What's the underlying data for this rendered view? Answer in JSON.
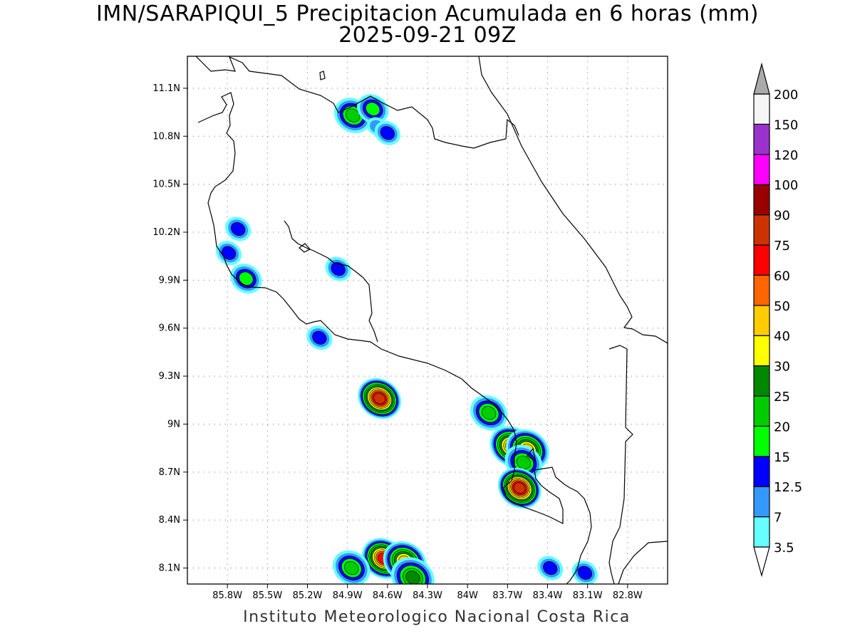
{
  "title": {
    "line1": "IMN/SARAPIQUI_5 Precipitacion Acumulada en 6 horas (mm)",
    "line2": "2025-09-21 09Z"
  },
  "footer": "Instituto Meteorologico Nacional Costa Rica",
  "map": {
    "lon_range": [
      -86.1,
      -82.5
    ],
    "lat_range": [
      8.0,
      11.3
    ],
    "lon_ticks": [
      {
        "v": -85.8,
        "label": "85.8W"
      },
      {
        "v": -85.5,
        "label": "85.5W"
      },
      {
        "v": -85.2,
        "label": "85.2W"
      },
      {
        "v": -84.9,
        "label": "84.9W"
      },
      {
        "v": -84.6,
        "label": "84.6W"
      },
      {
        "v": -84.3,
        "label": "84.3W"
      },
      {
        "v": -84.0,
        "label": "84W"
      },
      {
        "v": -83.7,
        "label": "83.7W"
      },
      {
        "v": -83.4,
        "label": "83.4W"
      },
      {
        "v": -83.1,
        "label": "83.1W"
      },
      {
        "v": -82.8,
        "label": "82.8W"
      }
    ],
    "lat_ticks": [
      {
        "v": 11.1,
        "label": "11.1N"
      },
      {
        "v": 10.8,
        "label": "10.8N"
      },
      {
        "v": 10.5,
        "label": "10.5N"
      },
      {
        "v": 10.2,
        "label": "10.2N"
      },
      {
        "v": 9.9,
        "label": "9.9N"
      },
      {
        "v": 9.6,
        "label": "9.6N"
      },
      {
        "v": 9.3,
        "label": "9.3N"
      },
      {
        "v": 9.0,
        "label": "9N"
      },
      {
        "v": 8.7,
        "label": "8.7N"
      },
      {
        "v": 8.4,
        "label": "8.4N"
      },
      {
        "v": 8.1,
        "label": "8.1N"
      }
    ],
    "grid": "dotted"
  },
  "colorbar": {
    "levels": [
      {
        "label": "3.5",
        "color": "#66ffff"
      },
      {
        "label": "7",
        "color": "#3399ff"
      },
      {
        "label": "12.5",
        "color": "#0000ff"
      },
      {
        "label": "15",
        "color": "#00ff00"
      },
      {
        "label": "20",
        "color": "#00cc00"
      },
      {
        "label": "25",
        "color": "#008800"
      },
      {
        "label": "30",
        "color": "#ffff00"
      },
      {
        "label": "40",
        "color": "#ffcc00"
      },
      {
        "label": "50",
        "color": "#ff6600"
      },
      {
        "label": "60",
        "color": "#ff0000"
      },
      {
        "label": "75",
        "color": "#cc3300"
      },
      {
        "label": "90",
        "color": "#990000"
      },
      {
        "label": "100",
        "color": "#ff00ff"
      },
      {
        "label": "120",
        "color": "#9933cc"
      },
      {
        "label": "150",
        "color": "#f5f5f5"
      },
      {
        "label": "200",
        "color": "#aaaaaa"
      }
    ],
    "under_color": "#ffffff",
    "over_color": "#aaaaaa"
  },
  "precipitation_cells": [
    {
      "lon": -84.86,
      "lat": 10.93,
      "max_level": 4
    },
    {
      "lon": -84.71,
      "lat": 10.97,
      "max_level": 3
    },
    {
      "lon": -84.68,
      "lat": 10.86,
      "max_level": 1
    },
    {
      "lon": -84.6,
      "lat": 10.82,
      "max_level": 2
    },
    {
      "lon": -85.66,
      "lat": 9.91,
      "max_level": 3
    },
    {
      "lon": -85.72,
      "lat": 10.22,
      "max_level": 2
    },
    {
      "lon": -85.79,
      "lat": 10.07,
      "max_level": 2
    },
    {
      "lon": -84.97,
      "lat": 9.97,
      "max_level": 2
    },
    {
      "lon": -85.11,
      "lat": 9.54,
      "max_level": 2
    },
    {
      "lon": -84.66,
      "lat": 9.16,
      "max_level": 10
    },
    {
      "lon": -83.84,
      "lat": 9.07,
      "max_level": 4
    },
    {
      "lon": -83.67,
      "lat": 8.86,
      "max_level": 8
    },
    {
      "lon": -83.55,
      "lat": 8.84,
      "max_level": 7
    },
    {
      "lon": -83.58,
      "lat": 8.76,
      "max_level": 4
    },
    {
      "lon": -83.61,
      "lat": 8.6,
      "max_level": 10
    },
    {
      "lon": -84.63,
      "lat": 8.16,
      "max_level": 9
    },
    {
      "lon": -84.47,
      "lat": 8.14,
      "max_level": 7
    },
    {
      "lon": -84.87,
      "lat": 8.1,
      "max_level": 4
    },
    {
      "lon": -84.41,
      "lat": 8.04,
      "max_level": 5
    },
    {
      "lon": -83.12,
      "lat": 8.07,
      "max_level": 2
    },
    {
      "lon": -83.38,
      "lat": 8.1,
      "max_level": 2
    }
  ]
}
